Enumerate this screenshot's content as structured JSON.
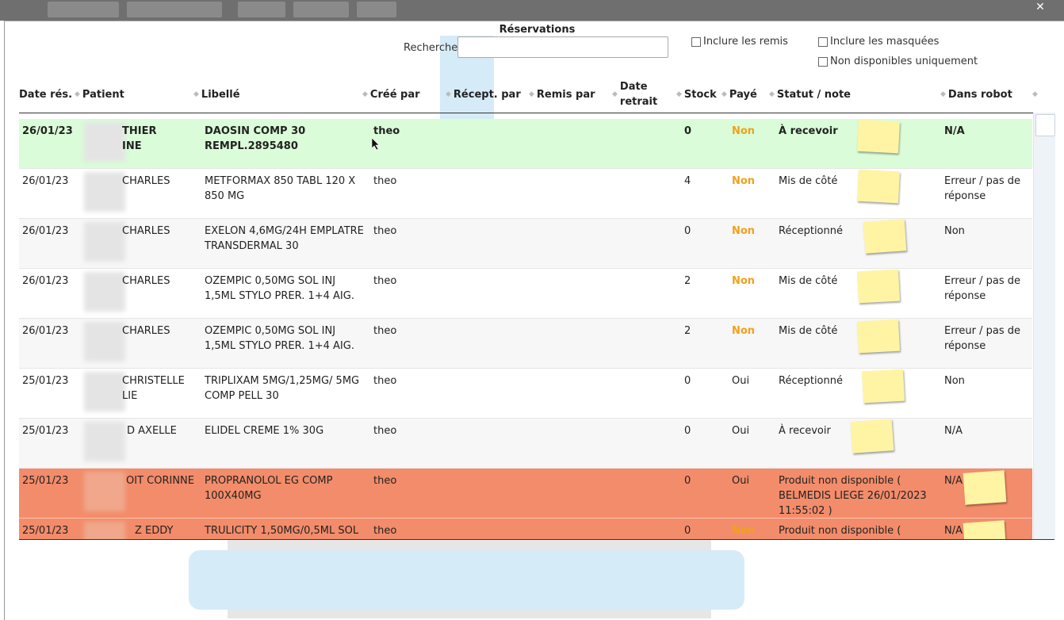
{
  "window": {
    "close_glyph": "✕"
  },
  "header": {
    "title": "Réservations",
    "search_label": "Recherche",
    "search_value": "",
    "search_placeholder": "",
    "include_remis": "Inclure les remis",
    "include_masquees": "Inclure les masquées",
    "non_disponibles": "Non disponibles uniquement"
  },
  "columns": {
    "date_res": "Date rés.",
    "patient": "Patient",
    "libelle": "Libellé",
    "cree_par": "Créé par",
    "recept_par": "Récept. par",
    "remis_par": "Remis par",
    "date_retrait_1": "Date",
    "date_retrait_2": "retrait",
    "stock": "Stock",
    "paye": "Payé",
    "statut": "Statut / note",
    "robot": "Dans robot"
  },
  "colors": {
    "row_selected": "#dafcd8",
    "row_alt": "#f7f7f7",
    "row_unavailable": "#f38c6a",
    "non_orange": "#f0a11c",
    "note_yellow": "#fff4a3"
  },
  "rows": [
    {
      "date": "26/01/23",
      "patient_1": "THIER",
      "patient_2": "INE",
      "libelle_1": "DAOSIN COMP 30",
      "libelle_2": "REMPL.2895480",
      "cree": "theo",
      "stock": "0",
      "paye": "Non",
      "statut_1": "À recevoir",
      "statut_2": "",
      "statut_3": "",
      "robot_1": "N/A",
      "robot_2": ""
    },
    {
      "date": "26/01/23",
      "patient_1": "CHARLES",
      "patient_2": "",
      "libelle_1": "METFORMAX 850 TABL 120 X",
      "libelle_2": "850 MG",
      "cree": "theo",
      "stock": "4",
      "paye": "Non",
      "statut_1": "Mis de côté",
      "statut_2": "",
      "statut_3": "",
      "robot_1": "Erreur / pas de",
      "robot_2": "réponse"
    },
    {
      "date": "26/01/23",
      "patient_1": "CHARLES",
      "patient_2": "",
      "libelle_1": "EXELON 4,6MG/24H EMPLATRE",
      "libelle_2": "TRANSDERMAL 30",
      "cree": "theo",
      "stock": "0",
      "paye": "Non",
      "statut_1": "Réceptionné",
      "statut_2": "",
      "statut_3": "",
      "robot_1": "Non",
      "robot_2": ""
    },
    {
      "date": "26/01/23",
      "patient_1": "CHARLES",
      "patient_2": "",
      "libelle_1": "OZEMPIC 0,50MG SOL INJ",
      "libelle_2": "1,5ML STYLO PRER. 1+4 AIG.",
      "cree": "theo",
      "stock": "2",
      "paye": "Non",
      "statut_1": "Mis de côté",
      "statut_2": "",
      "statut_3": "",
      "robot_1": "Erreur / pas de",
      "robot_2": "réponse"
    },
    {
      "date": "26/01/23",
      "patient_1": "CHARLES",
      "patient_2": "",
      "libelle_1": "OZEMPIC 0,50MG SOL INJ",
      "libelle_2": "1,5ML STYLO PRER. 1+4 AIG.",
      "cree": "theo",
      "stock": "2",
      "paye": "Non",
      "statut_1": "Mis de côté",
      "statut_2": "",
      "statut_3": "",
      "robot_1": "Erreur / pas de",
      "robot_2": "réponse"
    },
    {
      "date": "25/01/23",
      "patient_1": "CHRISTELLE",
      "patient_2": "LIE",
      "libelle_1": "TRIPLIXAM 5MG/1,25MG/ 5MG",
      "libelle_2": "COMP PELL 30",
      "cree": "theo",
      "stock": "0",
      "paye": "Oui",
      "statut_1": "Réceptionné",
      "statut_2": "",
      "statut_3": "",
      "robot_1": "Non",
      "robot_2": ""
    },
    {
      "date": "25/01/23",
      "patient_1": "D AXELLE",
      "patient_2": "",
      "libelle_1": "ELIDEL CREME 1% 30G",
      "libelle_2": "",
      "cree": "theo",
      "stock": "0",
      "paye": "Oui",
      "statut_1": "À recevoir",
      "statut_2": "",
      "statut_3": "",
      "robot_1": "N/A",
      "robot_2": ""
    },
    {
      "date": "25/01/23",
      "patient_1": "OIT CORINNE",
      "patient_2": "",
      "libelle_1": "PROPRANOLOL EG COMP",
      "libelle_2": "100X40MG",
      "cree": "theo",
      "stock": "0",
      "paye": "Oui",
      "statut_1": "Produit non disponible (",
      "statut_2": "BELMEDIS LIEGE 26/01/2023",
      "statut_3": "11:55:02 )",
      "robot_1": "N/A",
      "robot_2": ""
    },
    {
      "date": "25/01/23",
      "patient_1": "Z EDDY",
      "patient_2": "",
      "libelle_1": "TRULICITY 1,50MG/0,5ML SOL",
      "libelle_2": "",
      "cree": "theo",
      "stock": "0",
      "paye": "Non",
      "statut_1": "Produit non disponible (",
      "statut_2": "",
      "statut_3": "",
      "robot_1": "N/A",
      "robot_2": ""
    }
  ]
}
